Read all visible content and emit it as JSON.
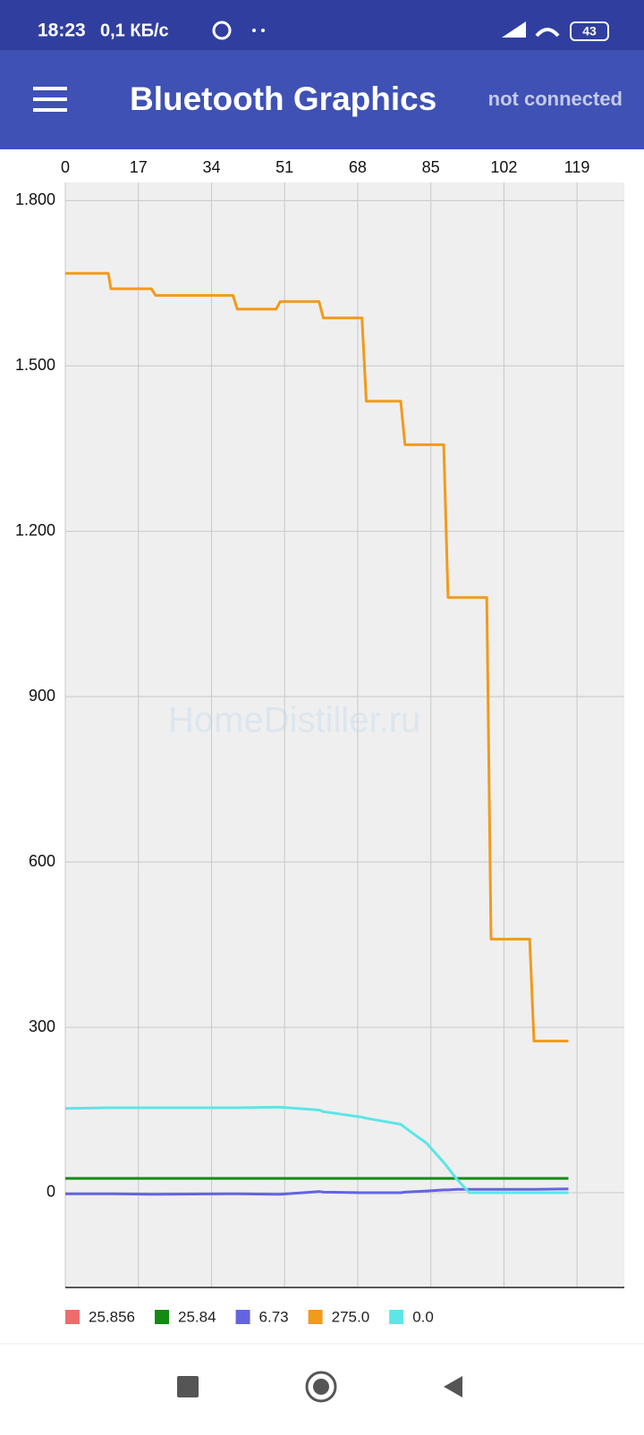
{
  "status_bar": {
    "time": "18:23",
    "speed": "0,1 КБ/с",
    "battery": "43"
  },
  "app_bar": {
    "title": "Bluetooth Graphics",
    "status": "not connected"
  },
  "watermark": "HomeDistiller.ru",
  "chart_data": {
    "type": "line",
    "x": [
      0,
      10,
      10.6,
      20,
      21,
      39,
      40,
      49,
      50,
      59,
      60,
      69,
      70,
      78,
      79,
      84,
      88,
      89,
      91,
      94,
      98,
      99,
      108,
      109,
      117
    ],
    "xlim": [
      0,
      130
    ],
    "xticks": [
      0,
      17,
      34,
      51,
      68,
      85,
      102,
      119
    ],
    "ylim": [
      -172,
      1833
    ],
    "yticks": [
      0,
      300,
      600,
      900,
      {
        "value": 1200,
        "label": "1.200"
      },
      {
        "value": 1500,
        "label": "1.500"
      },
      {
        "value": 1800,
        "label": "1.800"
      }
    ],
    "grid": true,
    "series": [
      {
        "name": "25.856",
        "color": "#ef6c6c",
        "values": [
          25.856,
          25.856,
          25.856,
          25.856,
          25.856,
          25.856,
          25.856,
          25.856,
          25.856,
          25.856,
          25.856,
          25.856,
          25.856,
          25.856,
          25.856,
          25.856,
          25.856,
          25.856,
          25.856,
          25.856,
          25.856,
          25.856,
          25.856,
          25.856,
          25.856
        ]
      },
      {
        "name": "25.84",
        "color": "#138a13",
        "values": [
          25.84,
          25.84,
          25.84,
          25.84,
          25.84,
          25.84,
          25.84,
          25.84,
          25.84,
          25.84,
          25.84,
          25.84,
          25.84,
          25.84,
          25.84,
          25.84,
          25.84,
          25.84,
          25.84,
          25.84,
          25.84,
          25.84,
          25.84,
          25.84,
          25.84
        ]
      },
      {
        "name": "6.73",
        "color": "#6464e0",
        "values": [
          -2,
          -2,
          -2,
          -3,
          -3,
          -2,
          -2,
          -3,
          -3,
          2,
          1,
          0,
          0,
          0,
          1,
          3,
          5,
          5,
          6,
          6,
          6,
          6,
          6,
          6,
          6.73
        ]
      },
      {
        "name": "275.0",
        "color": "#f29a1a",
        "values": [
          1668,
          1668,
          1640,
          1640,
          1628,
          1628,
          1603,
          1603,
          1617,
          1617,
          1587,
          1587,
          1436,
          1436,
          1357,
          1357,
          1357,
          1080,
          1080,
          1080,
          1080,
          460,
          460,
          275,
          275
        ]
      },
      {
        "name": "0.0",
        "color": "#5ce6e6",
        "values": [
          153,
          154,
          154,
          154,
          154,
          154,
          154,
          155,
          155,
          150,
          147,
          137,
          135,
          124,
          118,
          90,
          55,
          45,
          25,
          0,
          0,
          0,
          0,
          0,
          0.0
        ]
      }
    ]
  }
}
